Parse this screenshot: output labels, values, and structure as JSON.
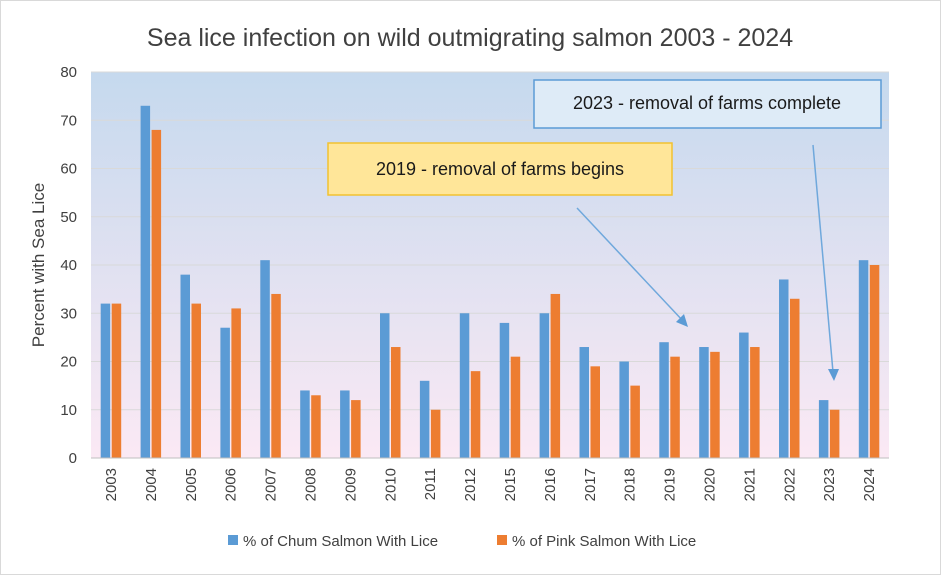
{
  "chart_data": {
    "type": "bar",
    "title": "Sea lice infection on wild outmigrating salmon 2003 - 2024",
    "xlabel": "",
    "ylabel": "Percent with Sea Lice",
    "ylim": [
      0,
      80
    ],
    "yticks": [
      0,
      10,
      20,
      30,
      40,
      50,
      60,
      70,
      80
    ],
    "grid": true,
    "legend_position": "bottom",
    "categories": [
      "2003",
      "2004",
      "2005",
      "2006",
      "2007",
      "2008",
      "2009",
      "2010",
      "2011",
      "2012",
      "2015",
      "2016",
      "2017",
      "2018",
      "2019",
      "2020",
      "2021",
      "2022",
      "2023",
      "2024"
    ],
    "series": [
      {
        "name": "% of Chum Salmon With Lice",
        "color": "#5b9bd5",
        "values": [
          32,
          73,
          38,
          27,
          41,
          14,
          14,
          30,
          16,
          30,
          28,
          30,
          23,
          20,
          24,
          23,
          26,
          37,
          12,
          41
        ]
      },
      {
        "name": "% of Pink Salmon With Lice",
        "color": "#ed7d31",
        "values": [
          32,
          68,
          32,
          31,
          34,
          13,
          12,
          23,
          10,
          18,
          21,
          34,
          19,
          15,
          21,
          22,
          23,
          33,
          10,
          40
        ]
      }
    ],
    "annotations": [
      {
        "text": "2019 - removal of farms begins",
        "points_to": "2019",
        "fill": "#ffe699",
        "border": "#f2c230"
      },
      {
        "text": "2023 - removal of farms complete",
        "points_to": "2023",
        "fill": "#deebf7",
        "border": "#5b9bd5"
      }
    ],
    "background_gradient": [
      "#c5d9ee",
      "#fbe9f4"
    ]
  }
}
